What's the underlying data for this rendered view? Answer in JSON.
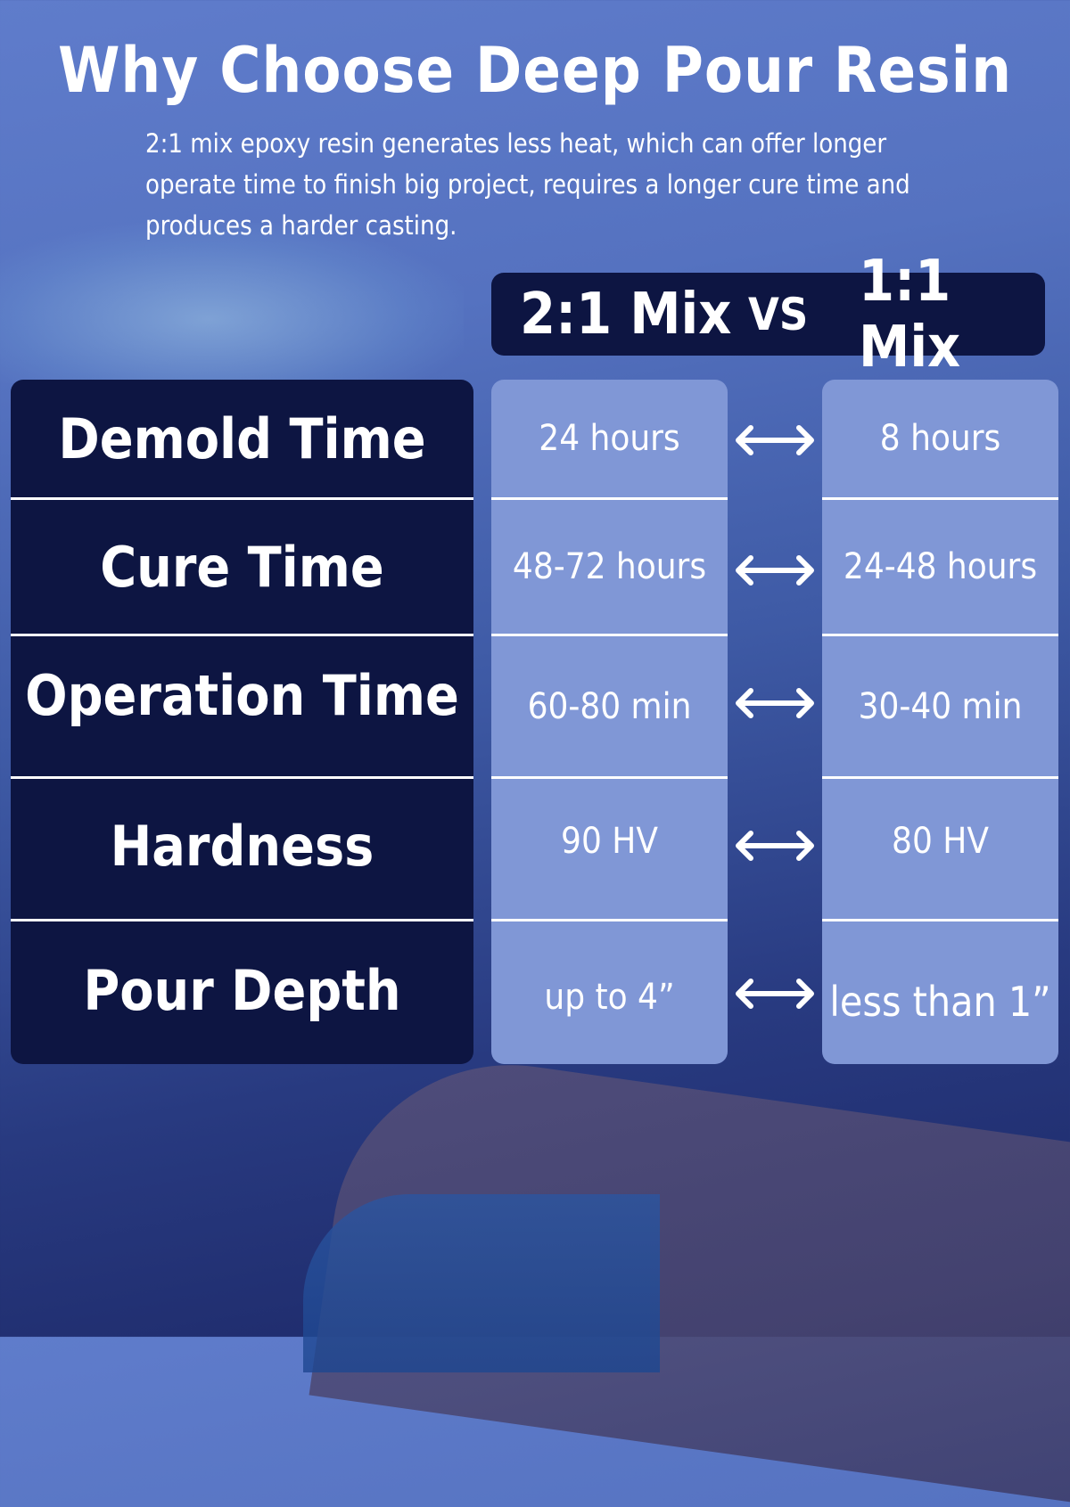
{
  "title": "Why Choose Deep Pour Resin",
  "subtitle": "2:1 mix epoxy resin generates less heat, which can offer longer operate time to finish big project, requires a longer cure time and produces a harder casting.",
  "header": {
    "left": "2:1 Mix",
    "vs": "VS",
    "right": "1:1 Mix"
  },
  "rows": [
    {
      "label": "Demold Time",
      "mix21": "24 hours",
      "mix11": "8 hours"
    },
    {
      "label": "Cure Time",
      "mix21": "48-72 hours",
      "mix11": "24-48 hours"
    },
    {
      "label": "Operation Time",
      "mix21": "60-80 min",
      "mix11": "30-40 min"
    },
    {
      "label": "Hardness",
      "mix21": "90 HV",
      "mix11": "80 HV"
    },
    {
      "label": "Pour Depth",
      "mix21": "up to 4”",
      "mix11": "less than 1”"
    }
  ],
  "icons": {
    "compare": "double-arrow-icon"
  },
  "colors": {
    "navy": "#0d1542",
    "cell": "#8097d6"
  }
}
